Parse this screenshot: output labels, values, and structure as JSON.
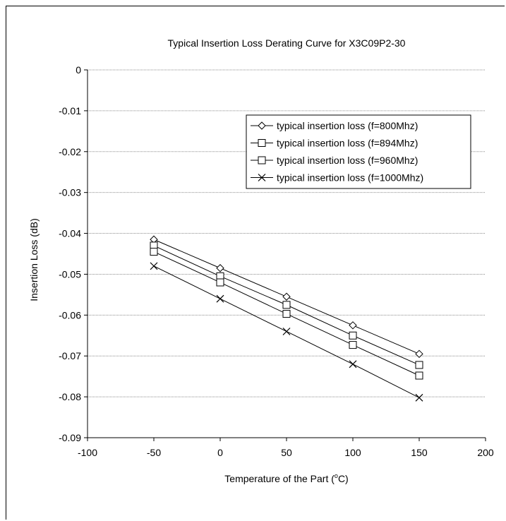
{
  "chart_data": {
    "type": "line",
    "title": "Typical Insertion Loss Derating Curve for X3C09P2-30",
    "xlabel_prefix": "Temperature of the Part (",
    "xlabel_sup": "o",
    "xlabel_suffix": "C)",
    "ylabel": "Insertion Loss (dB)",
    "xlim": [
      -100,
      200
    ],
    "ylim": [
      -0.09,
      0
    ],
    "xticks": [
      -100,
      -50,
      0,
      50,
      100,
      150,
      200
    ],
    "yticks": [
      0,
      -0.01,
      -0.02,
      -0.03,
      -0.04,
      -0.05,
      -0.06,
      -0.07,
      -0.08,
      -0.09
    ],
    "grid": "horizontal",
    "legend_position": "top-right",
    "x": [
      -50,
      0,
      50,
      100,
      150
    ],
    "series": [
      {
        "name": "typical insertion loss (f=800Mhz)",
        "marker": "diamond",
        "values": [
          -0.0415,
          -0.0485,
          -0.0555,
          -0.0625,
          -0.0695
        ]
      },
      {
        "name": "typical insertion loss (f=894Mhz)",
        "marker": "square",
        "values": [
          -0.043,
          -0.0505,
          -0.0575,
          -0.065,
          -0.0722
        ]
      },
      {
        "name": "typical insertion loss (f=960Mhz)",
        "marker": "square",
        "values": [
          -0.0445,
          -0.052,
          -0.0597,
          -0.0673,
          -0.0748
        ]
      },
      {
        "name": "typical insertion loss (f=1000Mhz)",
        "marker": "x",
        "values": [
          -0.048,
          -0.056,
          -0.064,
          -0.072,
          -0.0802
        ]
      }
    ]
  }
}
